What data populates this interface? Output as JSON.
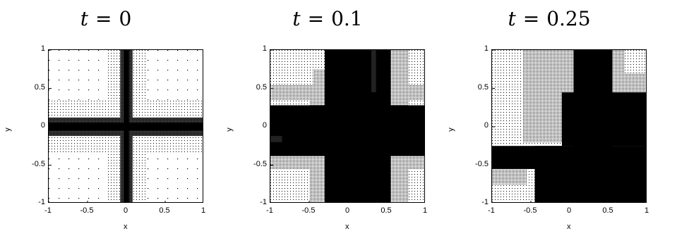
{
  "chart_data": [
    {
      "type": "heatmap",
      "title_var": "t",
      "title_op": "=",
      "title_val": "0",
      "xlabel": "x",
      "ylabel": "y",
      "xlim": [
        -1,
        1
      ],
      "ylim": [
        -1,
        1
      ],
      "x_ticks": [
        "-1",
        "-0.5",
        "0",
        "0.5",
        "1"
      ],
      "y_ticks": [
        "1",
        "0.5",
        "0",
        "-0.5",
        "-1"
      ],
      "x_tick_values": [
        -1,
        -0.5,
        0,
        0.5,
        1
      ],
      "y_tick_values": [
        1,
        0.5,
        0,
        -0.5,
        -1
      ],
      "regions": [
        {
          "x0": -1,
          "x1": 1,
          "y0": -1,
          "y1": 1,
          "fill": "sparse"
        },
        {
          "x0": -1,
          "x1": -0.05,
          "y0": -0.35,
          "y1": 0.35,
          "fill": "dots"
        },
        {
          "x0": 0.05,
          "x1": 1,
          "y0": -0.35,
          "y1": 0.35,
          "fill": "dots"
        },
        {
          "x0": -0.25,
          "x1": 0.25,
          "y0": -1,
          "y1": 1,
          "fill": "dots"
        },
        {
          "x0": -1,
          "x1": 1,
          "y0": -0.12,
          "y1": 0.12,
          "fill": "dense"
        },
        {
          "x0": -0.08,
          "x1": 0.08,
          "y0": -1,
          "y1": 1,
          "fill": "dense"
        },
        {
          "x0": -1,
          "x1": 1,
          "y0": -0.05,
          "y1": 0.05,
          "fill": "black"
        },
        {
          "x0": -0.035,
          "x1": 0.035,
          "y0": -1,
          "y1": 1,
          "fill": "black"
        }
      ]
    },
    {
      "type": "heatmap",
      "title_var": "t",
      "title_op": "=",
      "title_val": "0.1",
      "xlabel": "x",
      "ylabel": "y",
      "xlim": [
        -1,
        1
      ],
      "ylim": [
        -1,
        1
      ],
      "x_ticks": [
        "-1",
        "-0.5",
        "0",
        "0.5",
        "1"
      ],
      "y_ticks": [
        "1",
        "0.5",
        "0",
        "-0.5",
        "-1"
      ],
      "x_tick_values": [
        -1,
        -0.5,
        0,
        0.5,
        1
      ],
      "y_tick_values": [
        1,
        0.5,
        0,
        -0.5,
        -1
      ],
      "regions": [
        {
          "x0": -1,
          "x1": 1,
          "y0": -1,
          "y1": 1,
          "fill": "dots"
        },
        {
          "x0": -0.5,
          "x1": -0.25,
          "y0": -1,
          "y1": 0.75,
          "fill": "gray"
        },
        {
          "x0": 0.55,
          "x1": 0.78,
          "y0": -1,
          "y1": 1,
          "fill": "gray"
        },
        {
          "x0": -1,
          "x1": 1,
          "y0": 0.35,
          "y1": 0.55,
          "fill": "gray"
        },
        {
          "x0": -1,
          "x1": 1,
          "y0": -0.55,
          "y1": -0.35,
          "fill": "gray"
        },
        {
          "x0": -1,
          "x1": -0.45,
          "y0": 0.55,
          "y1": 1,
          "fill": "dots"
        },
        {
          "x0": -0.3,
          "x1": 0.55,
          "y0": -1,
          "y1": 1,
          "fill": "black"
        },
        {
          "x0": -1,
          "x1": 1,
          "y0": -0.38,
          "y1": 0.28,
          "fill": "black"
        },
        {
          "x0": -1,
          "x1": -0.85,
          "y0": -0.2,
          "y1": -0.12,
          "fill": "dark"
        },
        {
          "x0": 0.3,
          "x1": 0.36,
          "y0": 0.45,
          "y1": 1,
          "fill": "dark"
        }
      ]
    },
    {
      "type": "heatmap",
      "title_var": "t",
      "title_op": "=",
      "title_val": "0.25",
      "xlabel": "x",
      "ylabel": "y",
      "xlim": [
        -1,
        1
      ],
      "ylim": [
        -1,
        1
      ],
      "x_ticks": [
        "-1",
        "-0.5",
        "0",
        "0.5",
        "1"
      ],
      "y_ticks": [
        "1",
        "0.5",
        "0",
        "-0.5",
        "-1"
      ],
      "x_tick_values": [
        -1,
        -0.5,
        0,
        0.5,
        1
      ],
      "y_tick_values": [
        1,
        0.5,
        0,
        -0.5,
        -1
      ],
      "regions": [
        {
          "x0": -1,
          "x1": 1,
          "y0": -1,
          "y1": 1,
          "fill": "dots"
        },
        {
          "x0": -0.6,
          "x1": 0.2,
          "y0": -0.2,
          "y1": 1,
          "fill": "gray"
        },
        {
          "x0": 0.55,
          "x1": 1,
          "y0": 0.45,
          "y1": 1,
          "fill": "gray"
        },
        {
          "x0": -1,
          "x1": -0.55,
          "y0": -0.75,
          "y1": -0.55,
          "fill": "gray"
        },
        {
          "x0": 0.05,
          "x1": 0.55,
          "y0": -1,
          "y1": 1,
          "fill": "black"
        },
        {
          "x0": -1,
          "x1": 1,
          "y0": -0.55,
          "y1": -0.25,
          "fill": "black"
        },
        {
          "x0": -0.45,
          "x1": 1,
          "y0": -1,
          "y1": -0.25,
          "fill": "black"
        },
        {
          "x0": -0.1,
          "x1": 1,
          "y0": -0.25,
          "y1": 0.45,
          "fill": "black"
        },
        {
          "x0": 0.7,
          "x1": 1,
          "y0": 0.7,
          "y1": 1,
          "fill": "dots"
        }
      ]
    }
  ]
}
